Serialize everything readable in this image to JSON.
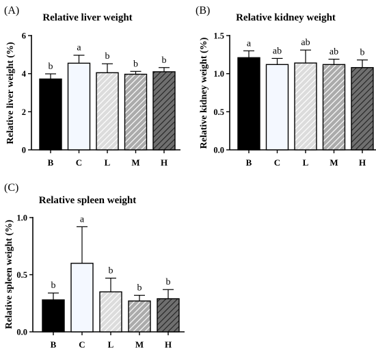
{
  "chart_data": [
    {
      "panel": "(A)",
      "type": "bar",
      "title": "Relative liver weight",
      "xlabel": "",
      "ylabel": "Relative liver weight (%)",
      "ylim": [
        0,
        6
      ],
      "yticks": [
        0,
        2,
        4,
        6
      ],
      "categories": [
        "B",
        "C",
        "L",
        "M",
        "H"
      ],
      "values": [
        3.72,
        4.55,
        4.05,
        3.97,
        4.1
      ],
      "errors": [
        0.27,
        0.42,
        0.47,
        0.15,
        0.22
      ],
      "significance": [
        "b",
        "a",
        "b",
        "b",
        "b"
      ]
    },
    {
      "panel": "(B)",
      "type": "bar",
      "title": "Relative kidney weight",
      "xlabel": "",
      "ylabel": "Relative kidney weight (%)",
      "ylim": [
        0,
        1.5
      ],
      "yticks": [
        0.0,
        0.5,
        1.0,
        1.5
      ],
      "tick_labels": [
        "0.0",
        "0.5",
        "1.0",
        "1.5"
      ],
      "categories": [
        "B",
        "C",
        "L",
        "M",
        "H"
      ],
      "values": [
        1.21,
        1.12,
        1.14,
        1.12,
        1.08
      ],
      "errors": [
        0.09,
        0.08,
        0.17,
        0.07,
        0.1
      ],
      "significance": [
        "a",
        "ab",
        "ab",
        "ab",
        "b"
      ]
    },
    {
      "panel": "(C)",
      "type": "bar",
      "title": "Relative spleen weight",
      "xlabel": "",
      "ylabel": "Relative spleen weight (%)",
      "ylim": [
        0,
        1.0
      ],
      "yticks": [
        0.0,
        0.5,
        1.0
      ],
      "tick_labels": [
        "0.0",
        "0.5",
        "1.0"
      ],
      "categories": [
        "B",
        "C",
        "L",
        "M",
        "H"
      ],
      "values": [
        0.28,
        0.6,
        0.35,
        0.27,
        0.29
      ],
      "errors": [
        0.06,
        0.32,
        0.12,
        0.05,
        0.08
      ],
      "significance": [
        "b",
        "a",
        "b",
        "b",
        "b"
      ]
    }
  ],
  "bar_styles": [
    {
      "category": "B",
      "fill": "#000000",
      "pattern": "solid"
    },
    {
      "category": "C",
      "fill": "#f4f8ff",
      "pattern": "solid"
    },
    {
      "category": "L",
      "fill": "#dcdcdc",
      "pattern": "hatch",
      "hatch_color": "#ffffff"
    },
    {
      "category": "M",
      "fill": "#ababab",
      "pattern": "hatch",
      "hatch_color": "#ffffff"
    },
    {
      "category": "H",
      "fill": "#6f6f6f",
      "pattern": "hatch",
      "hatch_color": "#202020"
    }
  ]
}
